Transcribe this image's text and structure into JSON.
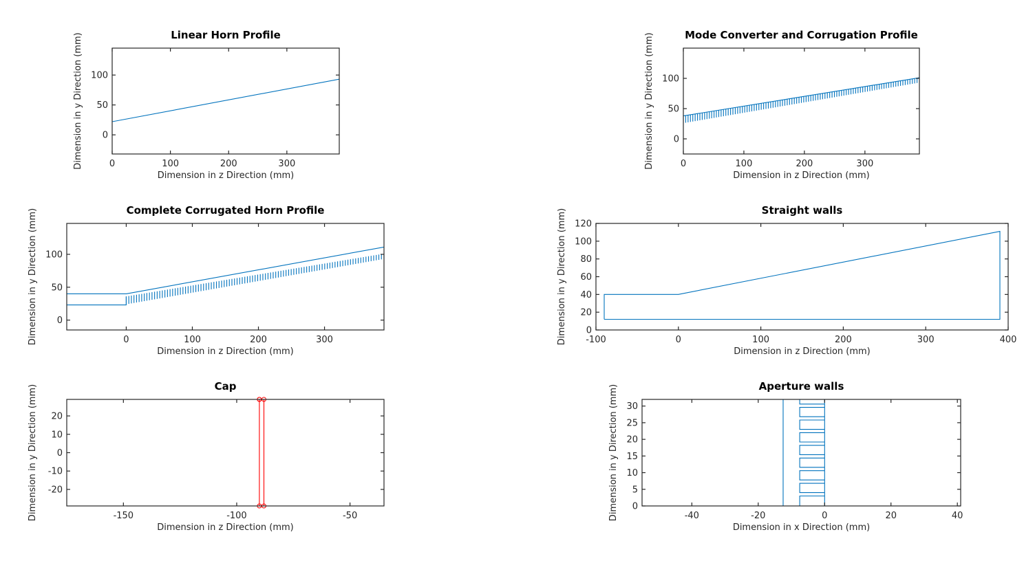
{
  "chart_data": [
    {
      "id": "linear-horn",
      "type": "line",
      "title": "Linear Horn Profile",
      "xlabel": "Dimension in z Direction (mm)",
      "ylabel": "Dimension in y Direction (mm)",
      "xlim": [
        0,
        390
      ],
      "ylim": [
        -32,
        145
      ],
      "xticks": [
        0,
        100,
        200,
        300
      ],
      "yticks": [
        0,
        50,
        100
      ],
      "grid": false,
      "series": [
        {
          "color": "#0072BD",
          "x": [
            0,
            390
          ],
          "y": [
            22,
            93
          ]
        }
      ]
    },
    {
      "id": "mode-converter",
      "type": "line",
      "title": "Mode Converter and Corrugation Profile",
      "xlabel": "Dimension in z Direction (mm)",
      "ylabel": "Dimension in y Direction (mm)",
      "xlim": [
        0,
        390
      ],
      "ylim": [
        -25,
        150
      ],
      "xticks": [
        0,
        100,
        200,
        300
      ],
      "yticks": [
        0,
        50,
        100
      ],
      "grid": false,
      "corrugation": {
        "z0": 0,
        "z1": 390,
        "pitch": 3.9,
        "slot_bottom": [
          26,
          93
        ],
        "ridge_top": [
          38,
          101
        ],
        "depth": 9
      },
      "series": [
        {
          "color": "#0072BD",
          "x": [
            0,
            390
          ],
          "y": [
            38,
            101
          ]
        }
      ]
    },
    {
      "id": "complete-horn",
      "type": "line",
      "title": "Complete Corrugated Horn Profile",
      "xlabel": "Dimension in z Direction (mm)",
      "ylabel": "Dimension in y Direction (mm)",
      "xlim": [
        -90,
        390
      ],
      "ylim": [
        -15,
        147
      ],
      "xticks": [
        0,
        100,
        200,
        300
      ],
      "yticks": [
        0,
        50,
        100
      ],
      "grid": false,
      "corrugation": {
        "z0": 0,
        "z1": 390,
        "pitch": 3.9,
        "slot_bottom": [
          24,
          93
        ],
        "ridge_top": [
          36,
          101
        ],
        "depth": 9
      },
      "series": [
        {
          "color": "#0072BD",
          "x": [
            -90,
            0,
            390
          ],
          "y": [
            40,
            40,
            111
          ]
        },
        {
          "color": "#0072BD",
          "x": [
            -90,
            0,
            0
          ],
          "y": [
            23,
            23,
            36
          ]
        }
      ]
    },
    {
      "id": "straight-walls",
      "type": "line",
      "title": "Straight walls",
      "xlabel": "Dimension in z Direction (mm)",
      "ylabel": "Dimension in y Direction (mm)",
      "xlim": [
        -100,
        400
      ],
      "ylim": [
        0,
        120
      ],
      "xticks": [
        -100,
        0,
        100,
        200,
        300,
        400
      ],
      "yticks": [
        0,
        20,
        40,
        60,
        80,
        100,
        120
      ],
      "grid": false,
      "series": [
        {
          "color": "#0072BD",
          "x": [
            -90,
            -90,
            0,
            390,
            390,
            -90
          ],
          "y": [
            12,
            40,
            40,
            111,
            12,
            12
          ]
        }
      ]
    },
    {
      "id": "cap",
      "type": "line",
      "title": "Cap",
      "xlabel": "Dimension in z Direction (mm)",
      "ylabel": "Dimension in y Direction (mm)",
      "xlim": [
        -175,
        -35
      ],
      "ylim": [
        -29,
        29
      ],
      "xticks": [
        -150,
        -100,
        -50
      ],
      "yticks": [
        -20,
        -10,
        0,
        10,
        20
      ],
      "grid": false,
      "series": [
        {
          "color": "#FF0000",
          "marker": "circle",
          "x": [
            -90,
            -90,
            -88,
            -88,
            -90
          ],
          "y": [
            29,
            -29,
            -29,
            29,
            29
          ]
        }
      ]
    },
    {
      "id": "aperture-walls",
      "type": "line",
      "title": "Aperture walls",
      "xlabel": "Dimension in x Direction (mm)",
      "ylabel": "Dimension in y Direction (mm)",
      "xlim": [
        -55,
        41
      ],
      "ylim": [
        0,
        32
      ],
      "xticks": [
        -40,
        -20,
        0,
        20,
        40
      ],
      "yticks": [
        0,
        5,
        10,
        15,
        20,
        25,
        30
      ],
      "grid": false,
      "series": [
        {
          "color": "#0072BD",
          "x": [
            -12.5,
            -12.5
          ],
          "y": [
            0,
            32
          ]
        },
        {
          "color": "#0072BD",
          "x": [
            -7.5,
            -7.5,
            0,
            0,
            -7.5,
            -7.5,
            0,
            0,
            -7.5,
            -7.5,
            0,
            0,
            -7.5,
            -7.5,
            0,
            0,
            -7.5,
            -7.5,
            0,
            0,
            -7.5,
            -7.5,
            0,
            0,
            -7.5,
            -7.5,
            0,
            0,
            -7.5,
            -7.5,
            0,
            0,
            -7.5,
            -7.5,
            0,
            0,
            -7.5,
            -7.5,
            0,
            0
          ],
          "y": [
            0,
            3,
            3,
            4,
            4,
            6.8,
            6.8,
            7.8,
            7.8,
            10.6,
            10.6,
            11.6,
            11.6,
            14.4,
            14.4,
            15.4,
            15.4,
            18.2,
            18.2,
            19.2,
            19.2,
            22,
            22,
            23,
            23,
            25.8,
            25.8,
            26.8,
            26.8,
            29.6,
            29.6,
            30.6,
            30.6,
            32,
            32,
            0,
            0,
            0,
            0,
            0
          ]
        }
      ]
    }
  ]
}
